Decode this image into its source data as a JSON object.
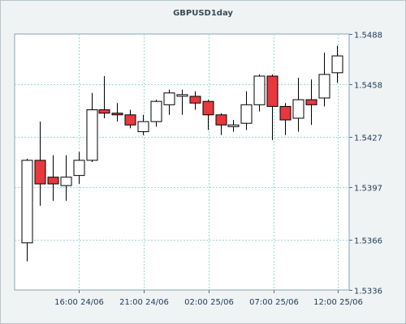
{
  "chart_data": {
    "type": "candlestick",
    "title": "GBPUSD1day",
    "xlabel": "",
    "ylabel": "",
    "ylim": [
      1.5336,
      1.5488
    ],
    "y_ticks": [
      "1.5488",
      "1.5458",
      "1.5427",
      "1.5397",
      "1.5366",
      "1.5336"
    ],
    "x_ticks": [
      "16:00 24/06",
      "21:00 24/06",
      "02:00 25/06",
      "07:00 25/06",
      "12:00 25/06"
    ],
    "grid": true,
    "up_color": "#ffffff",
    "down_color": "#e8383d",
    "candles": [
      {
        "o": 1.5364,
        "h": 1.5414,
        "l": 1.5353,
        "c": 1.5413
      },
      {
        "o": 1.5413,
        "h": 1.5436,
        "l": 1.5386,
        "c": 1.5399
      },
      {
        "o": 1.5403,
        "h": 1.5416,
        "l": 1.5389,
        "c": 1.5399
      },
      {
        "o": 1.5398,
        "h": 1.5416,
        "l": 1.5389,
        "c": 1.5403
      },
      {
        "o": 1.5404,
        "h": 1.5418,
        "l": 1.5399,
        "c": 1.5413
      },
      {
        "o": 1.5413,
        "h": 1.5453,
        "l": 1.5412,
        "c": 1.5443
      },
      {
        "o": 1.5443,
        "h": 1.5463,
        "l": 1.5438,
        "c": 1.5441
      },
      {
        "o": 1.5441,
        "h": 1.5447,
        "l": 1.5436,
        "c": 1.544
      },
      {
        "o": 1.544,
        "h": 1.5443,
        "l": 1.5432,
        "c": 1.5434
      },
      {
        "o": 1.543,
        "h": 1.544,
        "l": 1.5428,
        "c": 1.5436
      },
      {
        "o": 1.5436,
        "h": 1.5449,
        "l": 1.5433,
        "c": 1.5448
      },
      {
        "o": 1.5446,
        "h": 1.5455,
        "l": 1.544,
        "c": 1.5453
      },
      {
        "o": 1.5452,
        "h": 1.5455,
        "l": 1.544,
        "c": 1.5452
      },
      {
        "o": 1.5451,
        "h": 1.5454,
        "l": 1.5443,
        "c": 1.5447
      },
      {
        "o": 1.5448,
        "h": 1.5449,
        "l": 1.5431,
        "c": 1.544
      },
      {
        "o": 1.544,
        "h": 1.5441,
        "l": 1.5428,
        "c": 1.5434
      },
      {
        "o": 1.5433,
        "h": 1.5437,
        "l": 1.543,
        "c": 1.5434
      },
      {
        "o": 1.5435,
        "h": 1.5454,
        "l": 1.5431,
        "c": 1.5446
      },
      {
        "o": 1.5446,
        "h": 1.5464,
        "l": 1.5442,
        "c": 1.5463
      },
      {
        "o": 1.5463,
        "h": 1.5464,
        "l": 1.5425,
        "c": 1.5445
      },
      {
        "o": 1.5445,
        "h": 1.5447,
        "l": 1.5428,
        "c": 1.5437
      },
      {
        "o": 1.5438,
        "h": 1.5462,
        "l": 1.543,
        "c": 1.5449
      },
      {
        "o": 1.5449,
        "h": 1.5461,
        "l": 1.5434,
        "c": 1.5446
      },
      {
        "o": 1.545,
        "h": 1.5477,
        "l": 1.5445,
        "c": 1.5464
      },
      {
        "o": 1.5465,
        "h": 1.5481,
        "l": 1.5459,
        "c": 1.5475
      }
    ]
  }
}
